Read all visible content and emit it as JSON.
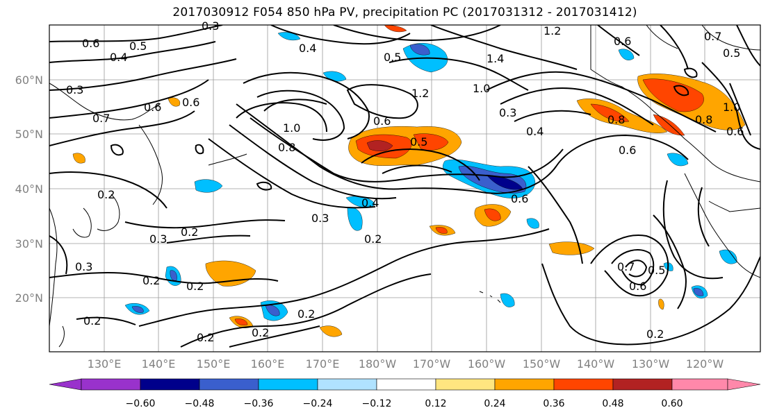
{
  "title": "2017030912 F054 850 hPa PV, precipitation PC (2017031312 - 2017031412)",
  "lat_labels": [
    "60°N",
    "50°N",
    "40°N",
    "30°N",
    "20°N"
  ],
  "lon_labels": [
    "130°E",
    "140°E",
    "150°E",
    "160°E",
    "170°E",
    "180°W",
    "170°W",
    "160°W",
    "150°W",
    "140°W",
    "130°W",
    "120°W"
  ],
  "colorbar": {
    "tick_labels": [
      "−0.60",
      "−0.48",
      "−0.36",
      "−0.24",
      "−0.12",
      "0.12",
      "0.24",
      "0.36",
      "0.48",
      "0.60"
    ],
    "colors": [
      "#9932cc",
      "#00008b",
      "#3a5fcd",
      "#00bfff",
      "#b0e2ff",
      "#ffffff",
      "#ffe680",
      "#ffa500",
      "#ff4500",
      "#b22222",
      "#ff88aa"
    ]
  },
  "contour_labels": [
    "0.3",
    "0.6",
    "0.4",
    "0.5",
    "0.3",
    "0.7",
    "0.6",
    "0.6",
    "0.4",
    "0.5",
    "1.2",
    "1.4",
    "1.2",
    "1.0",
    "0.3",
    "0.6",
    "0.5",
    "1.0",
    "0.8",
    "0.4",
    "0.6",
    "0.8",
    "0.8",
    "0.6",
    "0.7",
    "0.5",
    "0.4",
    "0.6",
    "0.3",
    "0.2",
    "0.2",
    "0.3",
    "0.2",
    "0.3",
    "0.2",
    "0.2",
    "0.2",
    "0.2",
    "0.2",
    "0.2",
    "0.7",
    "0.6",
    "0.5",
    "0.2",
    "1.0",
    "0.6"
  ]
}
